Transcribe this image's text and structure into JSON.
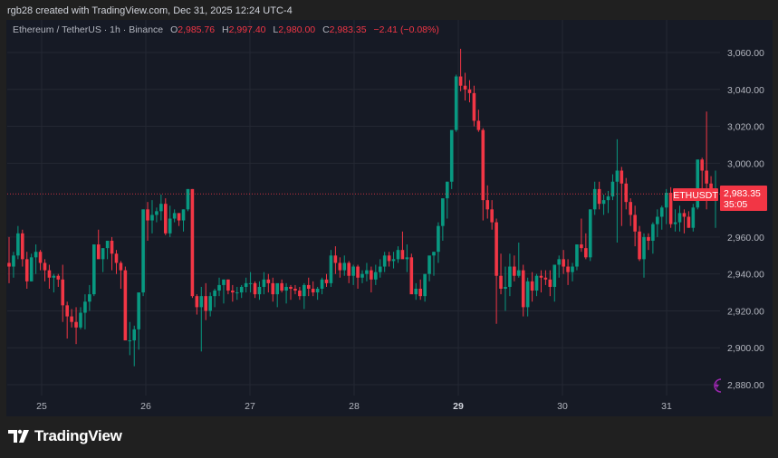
{
  "caption": "rgb28 created with TradingView.com, Dec 31, 2025 12:24 UTC-4",
  "legend": {
    "symbol": "Ethereum / TetherUS · 1h · Binance",
    "o_label": "O",
    "o": "2,985.76",
    "h_label": "H",
    "h": "2,997.40",
    "l_label": "L",
    "l": "2,980.00",
    "c_label": "C",
    "c": "2,983.35",
    "change": "−2.41 (−0.08%)"
  },
  "price_tag": {
    "ticker": "ETHUSDT",
    "price": "2,983.35",
    "countdown": "35:05"
  },
  "footer": {
    "brand": "TradingView"
  },
  "colors": {
    "up": "#089981",
    "down": "#f23645",
    "background": "#161a25",
    "grid": "#242833",
    "text": "#b2b5be",
    "accent": "#9c27b0"
  },
  "chart_data": {
    "type": "candlestick",
    "title": "Ethereum / TetherUS · 1h · Binance",
    "xlabel": "",
    "ylabel": "",
    "x_ticks": [
      "25",
      "26",
      "27",
      "28",
      "29",
      "30",
      "31"
    ],
    "y_ticks": [
      "3,060.00",
      "3,040.00",
      "3,020.00",
      "3,000.00",
      "2,960.00",
      "2,940.00",
      "2,920.00",
      "2,900.00",
      "2,880.00"
    ],
    "ylim": [
      2872,
      3072
    ],
    "last_price": 2983.35,
    "grid": true,
    "candles": [
      [
        2946,
        2960,
        2935,
        2944
      ],
      [
        2944,
        2952,
        2938,
        2950
      ],
      [
        2950,
        2966,
        2948,
        2962
      ],
      [
        2962,
        2964,
        2944,
        2948
      ],
      [
        2948,
        2952,
        2932,
        2936
      ],
      [
        2936,
        2951,
        2936,
        2949
      ],
      [
        2949,
        2956,
        2940,
        2952
      ],
      [
        2952,
        2953,
        2942,
        2946
      ],
      [
        2946,
        2948,
        2936,
        2942
      ],
      [
        2942,
        2945,
        2932,
        2938
      ],
      [
        2938,
        2940,
        2930,
        2939
      ],
      [
        2939,
        2940,
        2933,
        2937
      ],
      [
        2937,
        2945,
        2914,
        2923
      ],
      [
        2923,
        2925,
        2905,
        2917
      ],
      [
        2917,
        2921,
        2911,
        2914
      ],
      [
        2914,
        2922,
        2902,
        2911
      ],
      [
        2911,
        2922,
        2910,
        2919
      ],
      [
        2919,
        2929,
        2910,
        2925
      ],
      [
        2925,
        2934,
        2920,
        2929
      ],
      [
        2929,
        2956,
        2928,
        2956
      ],
      [
        2956,
        2964,
        2949,
        2948
      ],
      [
        2948,
        2950,
        2941,
        2954
      ],
      [
        2954,
        2958,
        2948,
        2958
      ],
      [
        2958,
        2960,
        2942,
        2951
      ],
      [
        2951,
        2953,
        2940,
        2946
      ],
      [
        2946,
        2947,
        2932,
        2942
      ],
      [
        2942,
        2944,
        2920,
        2904
      ],
      [
        2904,
        2914,
        2896,
        2904
      ],
      [
        2904,
        2912,
        2890,
        2910
      ],
      [
        2910,
        2920,
        2899,
        2930
      ],
      [
        2930,
        2975,
        2928,
        2975
      ],
      [
        2975,
        2979,
        2958,
        2969
      ],
      [
        2969,
        2980,
        2962,
        2972
      ],
      [
        2972,
        2976,
        2968,
        2974
      ],
      [
        2974,
        2983,
        2969,
        2978
      ],
      [
        2978,
        2981,
        2961,
        2962
      ],
      [
        2962,
        2977,
        2960,
        2970
      ],
      [
        2970,
        2975,
        2968,
        2973
      ],
      [
        2973,
        2972,
        2966,
        2969
      ],
      [
        2969,
        2975,
        2963,
        2975
      ],
      [
        2975,
        2986,
        2974,
        2986
      ],
      [
        2986,
        2986,
        2927,
        2928
      ],
      [
        2928,
        2929,
        2918,
        2922
      ],
      [
        2922,
        2933,
        2898,
        2928
      ],
      [
        2928,
        2935,
        2915,
        2920
      ],
      [
        2920,
        2930,
        2917,
        2928
      ],
      [
        2928,
        2932,
        2922,
        2931
      ],
      [
        2931,
        2938,
        2928,
        2934
      ],
      [
        2934,
        2937,
        2924,
        2937
      ],
      [
        2937,
        2937,
        2929,
        2931
      ],
      [
        2931,
        2934,
        2925,
        2930
      ],
      [
        2930,
        2933,
        2926,
        2930
      ],
      [
        2930,
        2934,
        2927,
        2933
      ],
      [
        2933,
        2938,
        2930,
        2935
      ],
      [
        2935,
        2941,
        2930,
        2935
      ],
      [
        2935,
        2936,
        2927,
        2929
      ],
      [
        2929,
        2936,
        2926,
        2933
      ],
      [
        2933,
        2941,
        2929,
        2937
      ],
      [
        2937,
        2940,
        2930,
        2935
      ],
      [
        2935,
        2938,
        2925,
        2929
      ],
      [
        2929,
        2934,
        2922,
        2935
      ],
      [
        2935,
        2937,
        2930,
        2931
      ],
      [
        2931,
        2935,
        2924,
        2933
      ],
      [
        2933,
        2934,
        2926,
        2932
      ],
      [
        2932,
        2934,
        2929,
        2931
      ],
      [
        2931,
        2933,
        2926,
        2928
      ],
      [
        2928,
        2935,
        2921,
        2934
      ],
      [
        2934,
        2938,
        2928,
        2932
      ],
      [
        2932,
        2936,
        2928,
        2930
      ],
      [
        2930,
        2933,
        2926,
        2932
      ],
      [
        2932,
        2938,
        2929,
        2937
      ],
      [
        2937,
        2940,
        2933,
        2935
      ],
      [
        2935,
        2953,
        2933,
        2950
      ],
      [
        2950,
        2955,
        2940,
        2946
      ],
      [
        2946,
        2949,
        2938,
        2942
      ],
      [
        2942,
        2950,
        2939,
        2946
      ],
      [
        2946,
        2947,
        2935,
        2939
      ],
      [
        2939,
        2945,
        2934,
        2944
      ],
      [
        2944,
        2945,
        2932,
        2938
      ],
      [
        2938,
        2942,
        2935,
        2940
      ],
      [
        2940,
        2946,
        2936,
        2942
      ],
      [
        2942,
        2944,
        2930,
        2937
      ],
      [
        2937,
        2945,
        2934,
        2941
      ],
      [
        2941,
        2948,
        2938,
        2944
      ],
      [
        2944,
        2952,
        2941,
        2950
      ],
      [
        2950,
        2952,
        2944,
        2947
      ],
      [
        2947,
        2952,
        2943,
        2948
      ],
      [
        2948,
        2955,
        2946,
        2953
      ],
      [
        2953,
        2963,
        2950,
        2948
      ],
      [
        2948,
        2956,
        2941,
        2949
      ],
      [
        2949,
        2951,
        2934,
        2929
      ],
      [
        2929,
        2935,
        2926,
        2932
      ],
      [
        2932,
        2937,
        2926,
        2928
      ],
      [
        2928,
        2940,
        2925,
        2940
      ],
      [
        2940,
        2948,
        2936,
        2950
      ],
      [
        2950,
        2952,
        2939,
        2952
      ],
      [
        2952,
        2968,
        2946,
        2966
      ],
      [
        2966,
        2975,
        2958,
        2981
      ],
      [
        2981,
        2990,
        2970,
        2990
      ],
      [
        2990,
        3015,
        2986,
        3018
      ],
      [
        3018,
        3048,
        3017,
        3047
      ],
      [
        3047,
        3062,
        3039,
        3042
      ],
      [
        3042,
        3049,
        3034,
        3040
      ],
      [
        3040,
        3045,
        3033,
        3038
      ],
      [
        3038,
        3042,
        3020,
        3023
      ],
      [
        3023,
        3029,
        3017,
        3018
      ],
      [
        3018,
        3019,
        2969,
        2980
      ],
      [
        2980,
        2988,
        2970,
        2975
      ],
      [
        2975,
        2980,
        2964,
        2968
      ],
      [
        2968,
        2970,
        2913,
        2939
      ],
      [
        2939,
        2951,
        2929,
        2932
      ],
      [
        2932,
        2944,
        2920,
        2933
      ],
      [
        2933,
        2951,
        2928,
        2944
      ],
      [
        2944,
        2950,
        2936,
        2939
      ],
      [
        2939,
        2957,
        2938,
        2942
      ],
      [
        2942,
        2945,
        2917,
        2922
      ],
      [
        2922,
        2938,
        2917,
        2936
      ],
      [
        2936,
        2941,
        2925,
        2931
      ],
      [
        2931,
        2940,
        2928,
        2939
      ],
      [
        2939,
        2942,
        2930,
        2938
      ],
      [
        2938,
        2942,
        2934,
        2937
      ],
      [
        2937,
        2942,
        2928,
        2933
      ],
      [
        2933,
        2945,
        2925,
        2945
      ],
      [
        2945,
        2950,
        2938,
        2948
      ],
      [
        2948,
        2953,
        2940,
        2944
      ],
      [
        2944,
        2948,
        2934,
        2941
      ],
      [
        2941,
        2946,
        2936,
        2944
      ],
      [
        2944,
        2956,
        2942,
        2956
      ],
      [
        2956,
        2970,
        2952,
        2954
      ],
      [
        2954,
        2962,
        2948,
        2949
      ],
      [
        2949,
        2975,
        2947,
        2975
      ],
      [
        2975,
        2990,
        2972,
        2986
      ],
      [
        2986,
        2990,
        2975,
        2978
      ],
      [
        2978,
        2983,
        2972,
        2980
      ],
      [
        2980,
        2985,
        2973,
        2982
      ],
      [
        2982,
        2994,
        2980,
        2990
      ],
      [
        2990,
        3013,
        2957,
        2996
      ],
      [
        2996,
        2998,
        2966,
        2989
      ],
      [
        2989,
        2992,
        2975,
        2979
      ],
      [
        2979,
        2981,
        2966,
        2972
      ],
      [
        2972,
        2977,
        2955,
        2963
      ],
      [
        2963,
        2966,
        2947,
        2948
      ],
      [
        2948,
        2962,
        2938,
        2960
      ],
      [
        2960,
        2962,
        2953,
        2958
      ],
      [
        2958,
        2968,
        2951,
        2967
      ],
      [
        2967,
        2975,
        2960,
        2971
      ],
      [
        2971,
        2977,
        2964,
        2976
      ],
      [
        2976,
        2986,
        2967,
        2984
      ],
      [
        2984,
        2987,
        2965,
        2967
      ],
      [
        2967,
        2975,
        2963,
        2968
      ],
      [
        2968,
        2977,
        2963,
        2973
      ],
      [
        2973,
        2975,
        2962,
        2971
      ],
      [
        2971,
        2974,
        2965,
        2965
      ],
      [
        2965,
        2978,
        2963,
        2976
      ],
      [
        2976,
        3002,
        2975,
        3002
      ],
      [
        3002,
        3003,
        2985,
        2996
      ],
      [
        2996,
        3028,
        2975,
        2989
      ],
      [
        2989,
        2993,
        2980,
        2983
      ],
      [
        2983,
        2996,
        2965,
        2983
      ]
    ]
  }
}
